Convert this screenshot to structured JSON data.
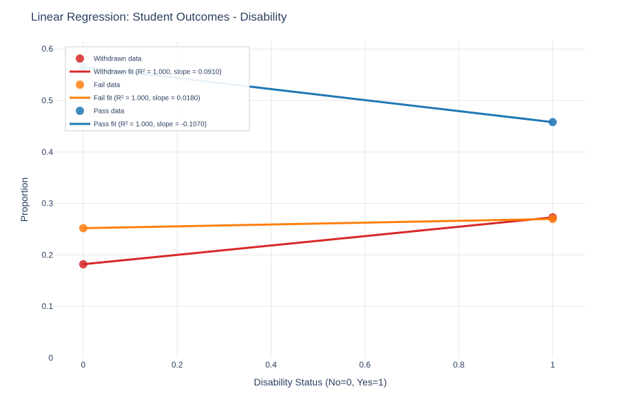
{
  "chart_data": {
    "type": "line",
    "title": "Linear Regression: Student Outcomes - Disability",
    "xlabel": "Disability Status (No=0, Yes=1)",
    "ylabel": "Proportion",
    "xlim": [
      -0.06,
      1.07
    ],
    "ylim": [
      0,
      0.615
    ],
    "x_ticks": [
      0,
      0.2,
      0.4,
      0.6,
      0.8,
      1
    ],
    "x_tick_labels": [
      "0",
      "0.2",
      "0.4",
      "0.6",
      "0.8",
      "1"
    ],
    "y_ticks": [
      0,
      0.1,
      0.2,
      0.3,
      0.4,
      0.5,
      0.6
    ],
    "y_tick_labels": [
      "0",
      "0.1",
      "0.2",
      "0.3",
      "0.4",
      "0.5",
      "0.6"
    ],
    "grid": true,
    "legend_position": "top-left",
    "series": [
      {
        "name": "Withdrawn data",
        "mode": "markers",
        "color": "#d62728",
        "x": [
          0,
          1
        ],
        "y": [
          0.182,
          0.273
        ]
      },
      {
        "name": "Withdrawn fit (R² = 1.000, slope = 0.0910)",
        "mode": "lines",
        "color": "#d62728",
        "x": [
          0,
          1
        ],
        "y": [
          0.182,
          0.273
        ]
      },
      {
        "name": "Fail data",
        "mode": "markers",
        "color": "#ff7f0e",
        "x": [
          0,
          1
        ],
        "y": [
          0.252,
          0.27
        ]
      },
      {
        "name": "Fail fit (R² = 1.000, slope = 0.0180)",
        "mode": "lines",
        "color": "#ff7f0e",
        "x": [
          0,
          1
        ],
        "y": [
          0.252,
          0.27
        ]
      },
      {
        "name": "Pass data",
        "mode": "markers",
        "color": "#1f77b4",
        "x": [
          0,
          1
        ],
        "y": [
          0.565,
          0.458
        ]
      },
      {
        "name": "Pass fit (R² = 1.000, slope = -0.1070)",
        "mode": "lines",
        "color": "#1f77b4",
        "x": [
          0,
          1
        ],
        "y": [
          0.565,
          0.458
        ]
      }
    ]
  }
}
